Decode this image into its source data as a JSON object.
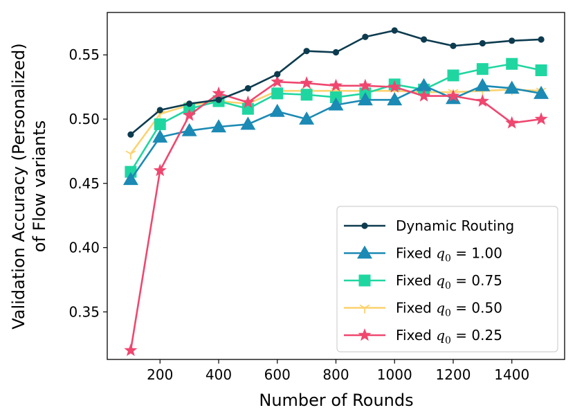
{
  "chart_data": {
    "type": "line",
    "title": "",
    "xlabel": "Number of Rounds",
    "ylabel_lines": [
      "Validation Accuracy (Personalized)",
      "of Flow variants"
    ],
    "xlim": [
      20,
      1580
    ],
    "ylim": [
      0.313,
      0.583
    ],
    "x_ticks": [
      200,
      400,
      600,
      800,
      1000,
      1200,
      1400
    ],
    "y_ticks": [
      0.35,
      0.4,
      0.45,
      0.5,
      0.55
    ],
    "x_tick_labels": [
      "200",
      "400",
      "600",
      "800",
      "1000",
      "1200",
      "1400"
    ],
    "y_tick_labels": [
      "0.35",
      "0.40",
      "0.45",
      "0.50",
      "0.55"
    ],
    "legend_position": "lower-right",
    "x": [
      100,
      200,
      300,
      400,
      500,
      600,
      700,
      800,
      900,
      1000,
      1100,
      1200,
      1300,
      1400,
      1500
    ],
    "series": [
      {
        "name": "Dynamic Routing",
        "legend_prefix": "Dynamic Routing",
        "legend_var": "",
        "legend_sub": "",
        "legend_value": "",
        "color": "#0d3b4f",
        "marker": "circle",
        "values": [
          0.488,
          0.507,
          0.512,
          0.515,
          0.524,
          0.535,
          0.553,
          0.552,
          0.564,
          0.569,
          0.562,
          0.557,
          0.559,
          0.561,
          0.562
        ]
      },
      {
        "name": "Fixed q0 = 1.00",
        "legend_prefix": "Fixed ",
        "legend_var": "q",
        "legend_sub": "0",
        "legend_value": " = 1.00",
        "color": "#1b8ab4",
        "marker": "triangle",
        "values": [
          0.453,
          0.486,
          0.491,
          0.494,
          0.496,
          0.506,
          0.5,
          0.511,
          0.515,
          0.515,
          0.526,
          0.516,
          0.526,
          0.524,
          0.52
        ]
      },
      {
        "name": "Fixed q0 = 0.75",
        "legend_prefix": "Fixed ",
        "legend_var": "q",
        "legend_sub": "0",
        "legend_value": " = 0.75",
        "color": "#1fd6a1",
        "marker": "square",
        "values": [
          0.459,
          0.496,
          0.508,
          0.514,
          0.508,
          0.52,
          0.519,
          0.517,
          0.52,
          0.527,
          0.523,
          0.534,
          0.539,
          0.543,
          0.538
        ]
      },
      {
        "name": "Fixed q0 = 0.50",
        "legend_prefix": "Fixed ",
        "legend_var": "q",
        "legend_sub": "0",
        "legend_value": " = 0.50",
        "color": "#fdd26e",
        "marker": "tri_down",
        "values": [
          0.473,
          0.504,
          0.511,
          0.514,
          0.512,
          0.522,
          0.522,
          0.522,
          0.522,
          0.522,
          0.521,
          0.521,
          0.522,
          0.523,
          0.522
        ]
      },
      {
        "name": "Fixed q0 = 0.25",
        "legend_prefix": "Fixed ",
        "legend_var": "q",
        "legend_sub": "0",
        "legend_value": " = 0.25",
        "color": "#ef476f",
        "marker": "star",
        "values": [
          0.32,
          0.46,
          0.503,
          0.52,
          0.513,
          0.529,
          0.528,
          0.526,
          0.526,
          0.525,
          0.518,
          0.518,
          0.514,
          0.497,
          0.5
        ]
      }
    ]
  }
}
